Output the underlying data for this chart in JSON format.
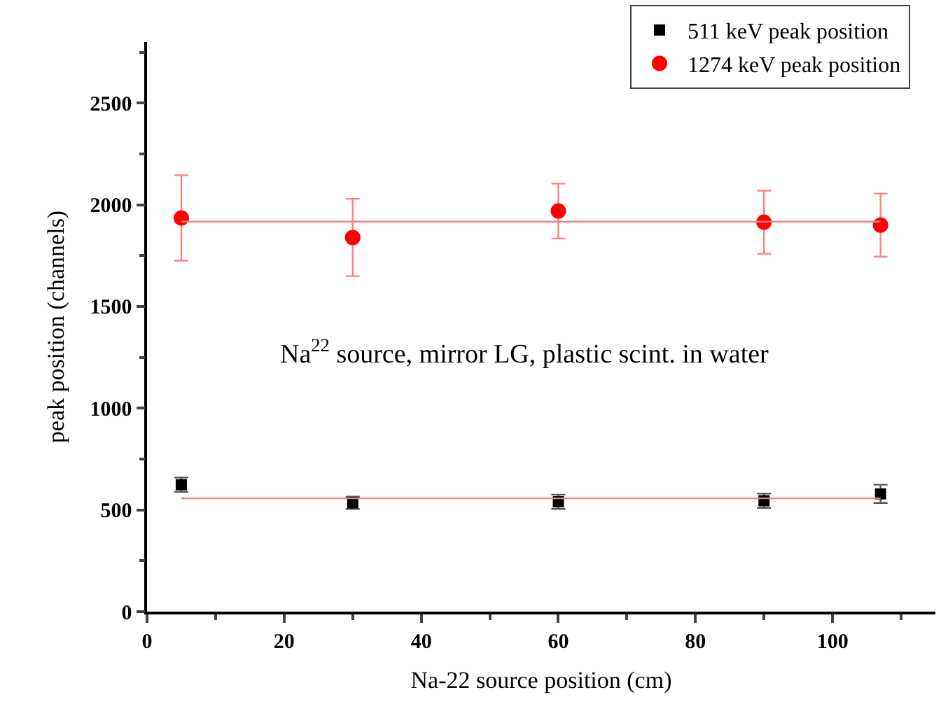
{
  "chart_data": {
    "type": "scatter",
    "xlabel": "Na-22 source position (cm)",
    "ylabel": "peak position (channels)",
    "annotations": [
      "Na$^{22}$ source, mirror LG, plastic scint. in water"
    ],
    "x": [
      5,
      30,
      60,
      90,
      107
    ],
    "series": [
      {
        "name": "511 keV peak position",
        "color": "#000000",
        "marker": "square",
        "values": [
          624,
          535,
          540,
          545,
          579
        ],
        "errors": [
          35,
          30,
          35,
          35,
          45
        ]
      },
      {
        "name": "1274 keV peak position",
        "color": "#ff0000",
        "marker": "circle",
        "values": [
          1935,
          1839,
          1969,
          1914,
          1900
        ],
        "errors": [
          210,
          190,
          135,
          155,
          155
        ]
      },
      {
        "type": "line",
        "color": "#f08080",
        "values": [
          557,
          557,
          557,
          557,
          557
        ]
      },
      {
        "type": "line",
        "color": "#f08080",
        "values": [
          1917,
          1917,
          1917,
          1917,
          1917
        ]
      }
    ],
    "xlim": [
      0,
      115
    ],
    "xticks": [
      0,
      20,
      40,
      60,
      80,
      100
    ],
    "ylim": [
      0,
      2800
    ],
    "yticks": [
      0,
      500,
      1000,
      1500,
      2000,
      2500
    ],
    "grid": false,
    "legend": "top right",
    "line_style": "solid"
  }
}
